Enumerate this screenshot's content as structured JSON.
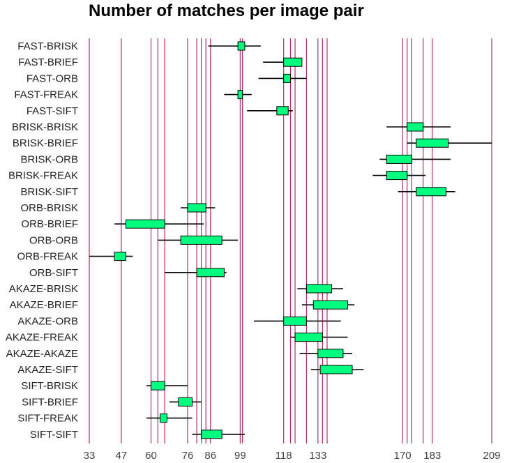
{
  "chart_data": {
    "type": "boxplot",
    "title": "Number of matches per image pair",
    "xlabel": "",
    "ylabel": "",
    "xlim": [
      33,
      209
    ],
    "x_tick_labels": [
      33,
      47,
      60,
      76,
      86,
      99,
      118,
      133,
      170,
      183,
      209
    ],
    "reference_lines": [
      33,
      47,
      60,
      63,
      66,
      76,
      80,
      82,
      84,
      86,
      99,
      100,
      118,
      121,
      123,
      128,
      133,
      135,
      137,
      170,
      172,
      174,
      179,
      183,
      209
    ],
    "colors": {
      "box_fill": "#00ff7f",
      "reference_line": "#b0306a",
      "whisker": "#000000"
    },
    "series": [
      {
        "name": "FAST-BRISK",
        "min": 85,
        "q1": 98,
        "q3": 101,
        "max": 108
      },
      {
        "name": "FAST-BRIEF",
        "min": 109,
        "q1": 118,
        "q3": 126,
        "max": 126
      },
      {
        "name": "FAST-ORB",
        "min": 107,
        "q1": 118,
        "q3": 121,
        "max": 128
      },
      {
        "name": "FAST-FREAK",
        "min": 92,
        "q1": 98,
        "q3": 100,
        "max": 104
      },
      {
        "name": "FAST-SIFT",
        "min": 102,
        "q1": 115,
        "q3": 120,
        "max": 122
      },
      {
        "name": "BRISK-BRISK",
        "min": 163,
        "q1": 172,
        "q3": 179,
        "max": 191
      },
      {
        "name": "BRISK-BRIEF",
        "min": 172,
        "q1": 176,
        "q3": 190,
        "max": 209
      },
      {
        "name": "BRISK-ORB",
        "min": 160,
        "q1": 163,
        "q3": 174,
        "max": 191
      },
      {
        "name": "BRISK-FREAK",
        "min": 157,
        "q1": 163,
        "q3": 172,
        "max": 180
      },
      {
        "name": "BRISK-SIFT",
        "min": 168,
        "q1": 176,
        "q3": 189,
        "max": 193
      },
      {
        "name": "ORB-BRISK",
        "min": 73,
        "q1": 76,
        "q3": 84,
        "max": 88
      },
      {
        "name": "ORB-BRIEF",
        "min": 44,
        "q1": 49,
        "q3": 66,
        "max": 83
      },
      {
        "name": "ORB-ORB",
        "min": 63,
        "q1": 73,
        "q3": 91,
        "max": 98
      },
      {
        "name": "ORB-FREAK",
        "min": 33,
        "q1": 44,
        "q3": 49,
        "max": 52
      },
      {
        "name": "ORB-SIFT",
        "min": 66,
        "q1": 80,
        "q3": 92,
        "max": 93
      },
      {
        "name": "AKAZE-BRISK",
        "min": 124,
        "q1": 128,
        "q3": 139,
        "max": 144
      },
      {
        "name": "AKAZE-BRIEF",
        "min": 126,
        "q1": 131,
        "q3": 146,
        "max": 149
      },
      {
        "name": "AKAZE-ORB",
        "min": 105,
        "q1": 118,
        "q3": 128,
        "max": 143
      },
      {
        "name": "AKAZE-FREAK",
        "min": 121,
        "q1": 123,
        "q3": 135,
        "max": 146
      },
      {
        "name": "AKAZE-AKAZE",
        "min": 125,
        "q1": 133,
        "q3": 144,
        "max": 148
      },
      {
        "name": "AKAZE-SIFT",
        "min": 130,
        "q1": 134,
        "q3": 148,
        "max": 153
      },
      {
        "name": "SIFT-BRISK",
        "min": 58,
        "q1": 60,
        "q3": 66,
        "max": 76
      },
      {
        "name": "SIFT-BRIEF",
        "min": 68,
        "q1": 72,
        "q3": 78,
        "max": 82
      },
      {
        "name": "SIFT-FREAK",
        "min": 58,
        "q1": 64,
        "q3": 67,
        "max": 78
      },
      {
        "name": "SIFT-SIFT",
        "min": 78,
        "q1": 82,
        "q3": 91,
        "max": 101
      }
    ]
  }
}
